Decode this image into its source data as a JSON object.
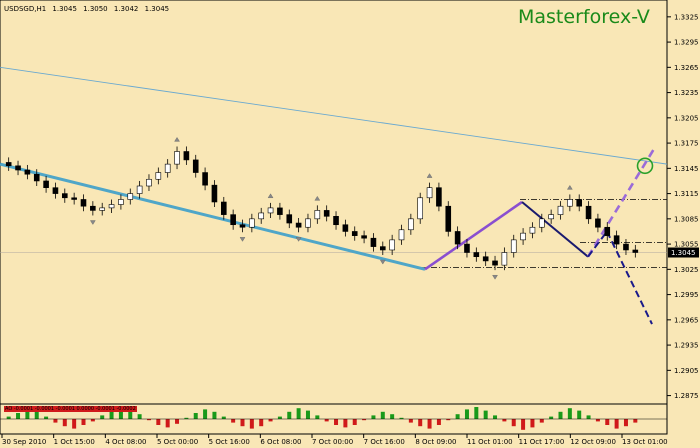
{
  "header": {
    "symbol": "USDSGD,H1",
    "ohlc": [
      "1.3045",
      "1.3050",
      "1.3042",
      "1.3045"
    ],
    "brand": "Masterforex-V"
  },
  "price_axis": {
    "ticks": [
      "1.3325",
      "1.3295",
      "1.3265",
      "1.3235",
      "1.3205",
      "1.3175",
      "1.3145",
      "1.3115",
      "1.3085",
      "1.3055",
      "1.3025",
      "1.2995",
      "1.2965",
      "1.2935",
      "1.2905",
      "1.2875"
    ],
    "current_price": "1.3045"
  },
  "time_axis": {
    "ticks": [
      "30 Sep 2010",
      "1 Oct 15:00",
      "4 Oct 08:00",
      "5 Oct 00:00",
      "5 Oct 16:00",
      "6 Oct 08:00",
      "7 Oct 00:00",
      "7 Oct 16:00",
      "8 Oct 09:00",
      "11 Oct 01:00",
      "11 Oct 17:00",
      "12 Oct 09:00",
      "13 Oct 01:00"
    ]
  },
  "oscillator": {
    "caption": "AO -0.0001 -0.0001 -0.0001 0.0000 -0.0001 -0.0002"
  },
  "chart_data": {
    "type": "candlestick",
    "symbol": "USDSGD",
    "timeframe": "H1",
    "ylim": [
      1.2865,
      1.3345
    ],
    "series": [
      {
        "name": "price",
        "values": [
          1.3148,
          1.3143,
          1.3138,
          1.313,
          1.3122,
          1.3115,
          1.311,
          1.3108,
          1.31,
          1.3095,
          1.3098,
          1.3102,
          1.3108,
          1.3115,
          1.3124,
          1.3132,
          1.314,
          1.315,
          1.3165,
          1.3155,
          1.314,
          1.3125,
          1.3105,
          1.309,
          1.3078,
          1.3075,
          1.3085,
          1.3092,
          1.3098,
          1.309,
          1.308,
          1.3075,
          1.3085,
          1.3095,
          1.3088,
          1.3078,
          1.307,
          1.3065,
          1.3062,
          1.3052,
          1.3048,
          1.306,
          1.3072,
          1.3085,
          1.311,
          1.3122,
          1.31,
          1.307,
          1.3055,
          1.3045,
          1.304,
          1.3035,
          1.303,
          1.3045,
          1.306,
          1.3068,
          1.3075,
          1.3085,
          1.309,
          1.31,
          1.3108,
          1.31,
          1.3085,
          1.3075,
          1.3065,
          1.3055,
          1.3048,
          1.3045
        ]
      },
      {
        "name": "upper trendline",
        "values": [
          1.3265,
          1.315
        ]
      },
      {
        "name": "lower trendline",
        "values": [
          1.315,
          1.3025
        ]
      },
      {
        "name": "wave up",
        "values": [
          1.3025,
          1.3105
        ]
      },
      {
        "name": "wave down",
        "values": [
          1.3105,
          1.304
        ]
      },
      {
        "name": "projection up",
        "values": [
          1.304,
          1.317
        ]
      },
      {
        "name": "projection down",
        "values": [
          1.307,
          1.296
        ]
      }
    ],
    "levels": [
      1.3108,
      1.3057,
      1.3027
    ],
    "oscillator": {
      "values": [
        0.2,
        0.5,
        0.8,
        0.6,
        0.2,
        -0.3,
        -0.6,
        -0.8,
        -0.5,
        -0.2,
        0.3,
        0.7,
        0.9,
        0.7,
        0.4,
        -0.1,
        -0.5,
        -0.7,
        -0.4,
        0.1,
        0.5,
        0.8,
        0.6,
        0.2,
        -0.3,
        -0.6,
        -0.8,
        -0.6,
        -0.2,
        0.2,
        0.6,
        0.9,
        0.7,
        0.3,
        -0.2,
        -0.5,
        -0.7,
        -0.5,
        -0.1,
        0.3,
        0.6,
        0.4,
        0.1,
        -0.3,
        -0.6,
        -0.8,
        -0.5,
        -0.1,
        0.4,
        0.8,
        1.0,
        0.7,
        0.3,
        -0.2,
        -0.6,
        -0.9,
        -0.7,
        -0.3,
        0.2,
        0.6,
        0.9,
        0.7,
        0.3,
        -0.2,
        -0.5,
        -0.8,
        -0.6,
        -0.3
      ]
    },
    "colors": {
      "background": "#f9e7b6",
      "up_candle": "#ffffff",
      "down_candle": "#000000",
      "lower_trendline": "#4fa6c8",
      "upper_trendline": "#6aa9d0",
      "wave_up": "#8a4fd0",
      "wave_down": "#1a1a6e",
      "projection_up": "#9b6bd8",
      "projection_down": "#1a1a8a",
      "circle": "#2aa02a",
      "osc_positive": "#1a9a1a",
      "osc_negative": "#d01a1a"
    }
  }
}
